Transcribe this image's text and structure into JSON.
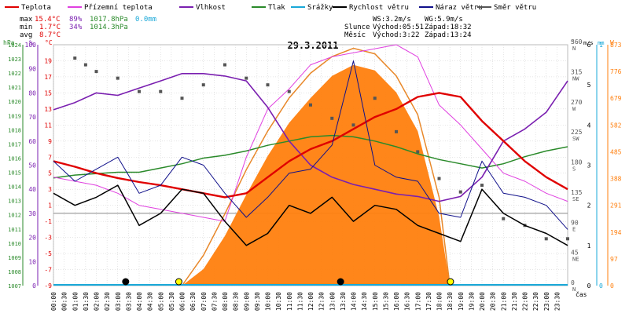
{
  "legend": [
    {
      "label": "Teplota",
      "color": "#e00000"
    },
    {
      "label": "Přízemní teplota",
      "color": "#e040e0"
    },
    {
      "label": "Vlhkost",
      "color": "#7a1fb0"
    },
    {
      "label": "Tlak",
      "color": "#2a8a2a"
    },
    {
      "label": "Srážky",
      "color": "#19a8d8"
    },
    {
      "label": "Rychlost větru",
      "color": "#000000"
    },
    {
      "label": "Náraz větru",
      "color": "#10108a"
    },
    {
      "label": "Směr větru",
      "color": "#555555"
    }
  ],
  "stats": {
    "max": {
      "label": "max",
      "temp": "15.4°C",
      "hum": "89%",
      "press": "1017.8hPa",
      "rain": "0.0mm"
    },
    "min": {
      "label": "min",
      "temp": "1.7°C",
      "hum": "34%",
      "press": "1014.3hPa"
    },
    "avg": {
      "label": "avg",
      "temp": "8.7°C"
    }
  },
  "wind_info": {
    "ws": "WS:3.2m/s",
    "wg": "WG:5.9m/s"
  },
  "sun_info": {
    "label": "Slunce",
    "rise": "Východ:05:51",
    "set": "Západ:18:32"
  },
  "moon_info": {
    "label": "Měsíc",
    "rise": "Východ:3:22",
    "set": "Západ:13:24"
  },
  "colors": {
    "temperature": "#e00000",
    "ground_temp": "#e040e0",
    "humidity": "#7a1fb0",
    "pressure": "#2a8a2a",
    "rain": "#19a8d8",
    "wind": "#000000",
    "gust": "#10108a",
    "direction": "#555555",
    "solar": "#ff7f0e",
    "grid": "#cccccc"
  },
  "chart_data": {
    "type": "line",
    "title": "29.3.2011",
    "xlabel": "čas",
    "x_ticks": [
      "00:00",
      "00:30",
      "01:00",
      "01:30",
      "02:00",
      "02:30",
      "03:00",
      "03:30",
      "04:00",
      "04:30",
      "05:00",
      "05:30",
      "06:00",
      "06:30",
      "07:00",
      "07:30",
      "08:00",
      "08:30",
      "09:00",
      "09:30",
      "10:00",
      "10:30",
      "11:00",
      "11:30",
      "12:00",
      "12:30",
      "13:00",
      "13:30",
      "14:00",
      "14:30",
      "15:00",
      "15:30",
      "16:00",
      "16:30",
      "17:00",
      "17:30",
      "18:00",
      "18:30",
      "19:00",
      "19:30",
      "20:00",
      "20:30",
      "21:00",
      "21:30",
      "22:00",
      "22:30",
      "23:00",
      "23:30"
    ],
    "axes": {
      "pressure": {
        "unit": "hPa",
        "range": [
          1007,
          1024
        ],
        "ticks": [
          1007,
          1008,
          1009,
          1010,
          1011,
          1012,
          1013,
          1014,
          1015,
          1016,
          1017,
          1018,
          1019,
          1020,
          1021,
          1022,
          1023,
          1024
        ]
      },
      "humidity": {
        "unit": "%",
        "range": [
          0,
          100
        ],
        "ticks": [
          0,
          10,
          20,
          30,
          40,
          50,
          60,
          70,
          80,
          90,
          100
        ]
      },
      "temperature": {
        "unit": "°C",
        "range": [
          -9,
          21
        ],
        "ticks": [
          -9,
          -7,
          -5,
          -3,
          -1,
          1,
          3,
          5,
          7,
          9,
          11,
          13,
          15,
          17,
          19
        ]
      },
      "direction": {
        "unit": "°",
        "range": [
          0,
          360
        ],
        "ticks": [
          {
            "v": 0,
            "t": "0",
            "d": "N"
          },
          {
            "v": 45,
            "t": "45",
            "d": "NE"
          },
          {
            "v": 90,
            "t": "90",
            "d": "E"
          },
          {
            "v": 135,
            "t": "135",
            "d": "SE"
          },
          {
            "v": 180,
            "t": "180",
            "d": "S"
          },
          {
            "v": 225,
            "t": "225",
            "d": "SW"
          },
          {
            "v": 270,
            "t": "270",
            "d": "W"
          },
          {
            "v": 315,
            "t": "315",
            "d": "NW"
          },
          {
            "v": 360,
            "t": "360",
            "d": "N"
          }
        ]
      },
      "wind": {
        "unit": "m/s",
        "range": [
          0,
          6
        ],
        "ticks": [
          0,
          1,
          2,
          3,
          4,
          5,
          6
        ]
      },
      "rain": {
        "unit": "mm",
        "range": [
          0,
          1
        ],
        "ticks": [
          0,
          1
        ]
      },
      "solar": {
        "unit": "W",
        "range": [
          0,
          873
        ],
        "ticks": [
          0,
          97,
          194,
          291,
          388,
          485,
          582,
          679,
          776,
          873
        ]
      }
    },
    "series": [
      {
        "name": "Teplota",
        "axis": "temperature",
        "x": [
          0,
          1,
          2,
          3,
          4,
          5,
          6,
          7,
          8,
          9,
          10,
          11,
          12,
          13,
          14,
          15,
          16,
          17,
          18,
          19,
          20,
          21,
          22,
          23,
          24
        ],
        "values": [
          6.5,
          5.8,
          5.0,
          4.4,
          3.9,
          3.5,
          3.0,
          2.5,
          2.0,
          2.5,
          4.5,
          6.5,
          8.0,
          9.0,
          10.5,
          12.0,
          13.0,
          14.5,
          15.0,
          14.5,
          11.5,
          9.0,
          6.5,
          4.5,
          3.0
        ]
      },
      {
        "name": "Přízemní teplota",
        "axis": "temperature",
        "x": [
          0,
          1,
          2,
          3,
          4,
          5,
          6,
          7,
          8,
          9,
          10,
          11,
          12,
          13,
          14,
          15,
          16,
          17,
          18,
          19,
          20,
          21,
          22,
          23,
          24
        ],
        "values": [
          4.5,
          4.0,
          3.5,
          2.5,
          1.0,
          0.5,
          0.0,
          -0.5,
          -1.0,
          7.0,
          13.0,
          15.5,
          18.5,
          19.5,
          20.0,
          20.5,
          21.0,
          19.5,
          13.5,
          11.0,
          8.0,
          5.0,
          4.0,
          2.5,
          1.5
        ]
      },
      {
        "name": "Vlhkost",
        "axis": "humidity",
        "x": [
          0,
          1,
          2,
          3,
          4,
          5,
          6,
          7,
          8,
          9,
          10,
          11,
          12,
          13,
          14,
          15,
          16,
          17,
          18,
          19,
          20,
          21,
          22,
          23,
          24
        ],
        "values": [
          73,
          76,
          80,
          79,
          82,
          85,
          88,
          88,
          87,
          85,
          74,
          60,
          50,
          45,
          42,
          40,
          38,
          37,
          35,
          37,
          45,
          60,
          65,
          72,
          85
        ]
      },
      {
        "name": "Tlak",
        "axis": "pressure",
        "x": [
          0,
          1,
          2,
          3,
          4,
          5,
          6,
          7,
          8,
          9,
          10,
          11,
          12,
          13,
          14,
          15,
          16,
          17,
          18,
          19,
          20,
          21,
          22,
          23,
          24
        ],
        "values": [
          1014.6,
          1014.8,
          1014.9,
          1015.0,
          1015.0,
          1015.3,
          1015.6,
          1016.0,
          1016.2,
          1016.5,
          1016.9,
          1017.2,
          1017.5,
          1017.6,
          1017.5,
          1017.2,
          1016.8,
          1016.3,
          1015.9,
          1015.6,
          1015.3,
          1015.6,
          1016.1,
          1016.5,
          1016.8
        ]
      },
      {
        "name": "Rychlost větru",
        "axis": "wind",
        "x": [
          0,
          1,
          2,
          3,
          4,
          5,
          6,
          7,
          8,
          9,
          10,
          11,
          12,
          13,
          14,
          15,
          16,
          17,
          18,
          19,
          20,
          21,
          22,
          23,
          24
        ],
        "values": [
          2.3,
          2.0,
          2.2,
          2.5,
          1.5,
          1.8,
          2.4,
          2.3,
          1.6,
          1.0,
          1.3,
          2.0,
          1.8,
          2.2,
          1.6,
          2.0,
          1.9,
          1.5,
          1.3,
          1.1,
          2.4,
          1.8,
          1.5,
          1.3,
          1.0
        ]
      },
      {
        "name": "Náraz větru",
        "axis": "wind",
        "x": [
          0,
          1,
          2,
          3,
          4,
          5,
          6,
          7,
          8,
          9,
          10,
          11,
          12,
          13,
          14,
          15,
          16,
          17,
          18,
          19,
          20,
          21,
          22,
          23,
          24
        ],
        "values": [
          3.1,
          2.6,
          2.9,
          3.2,
          2.3,
          2.5,
          3.2,
          3.0,
          2.3,
          1.7,
          2.2,
          2.8,
          2.9,
          3.5,
          5.6,
          3.0,
          2.7,
          2.6,
          1.8,
          1.7,
          3.1,
          2.3,
          2.2,
          2.0,
          1.4
        ]
      },
      {
        "name": "Směr větru",
        "axis": "direction",
        "x": [
          1,
          1.5,
          2,
          3,
          4,
          5,
          6,
          7,
          8,
          9,
          10,
          11,
          12,
          13,
          14,
          15,
          16,
          17,
          18,
          19,
          20,
          21,
          22,
          23,
          24
        ],
        "values": [
          340,
          330,
          320,
          310,
          290,
          290,
          280,
          300,
          330,
          310,
          300,
          290,
          270,
          250,
          240,
          280,
          230,
          200,
          160,
          140,
          150,
          100,
          90,
          70,
          70
        ]
      },
      {
        "name": "Solar",
        "axis": "solar",
        "x": [
          6,
          7,
          8,
          9,
          10,
          11,
          12,
          13,
          14,
          15,
          16,
          17,
          18,
          18.5
        ],
        "values": [
          0,
          60,
          180,
          330,
          470,
          590,
          680,
          760,
          800,
          780,
          700,
          560,
          250,
          0
        ]
      },
      {
        "name": "Solar max",
        "axis": "solar",
        "x": [
          6,
          7,
          8,
          9,
          10,
          11,
          12,
          13,
          14,
          15,
          16,
          17,
          18,
          18.5
        ],
        "values": [
          0,
          110,
          260,
          420,
          560,
          680,
          770,
          830,
          860,
          840,
          760,
          620,
          320,
          0
        ]
      }
    ],
    "moon_markers": [
      {
        "x": 3.37,
        "color": "#000000"
      },
      {
        "x": 13.4,
        "color": "#000000"
      }
    ],
    "sun_markers": [
      {
        "x": 5.85,
        "color": "#ffff00"
      },
      {
        "x": 18.53,
        "color": "#ffff00"
      }
    ]
  }
}
